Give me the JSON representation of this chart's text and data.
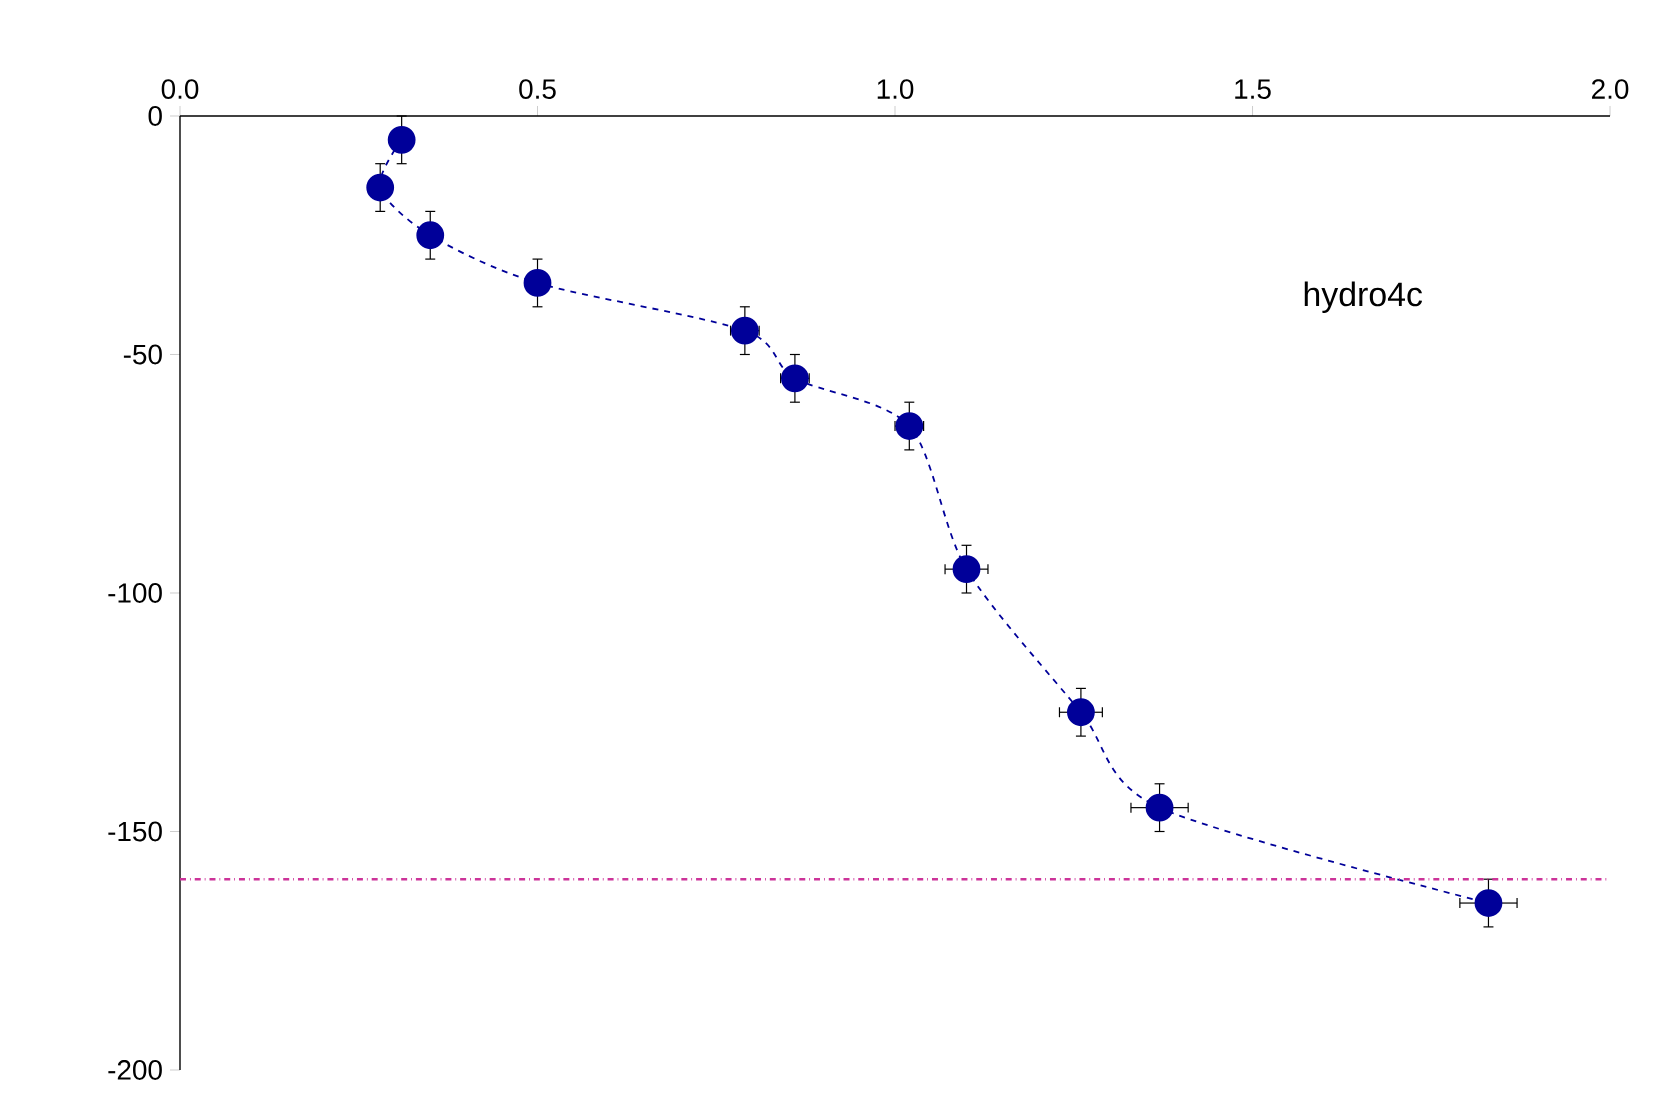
{
  "chart_data": {
    "type": "line",
    "x": [
      0.31,
      0.28,
      0.35,
      0.5,
      0.79,
      0.86,
      1.02,
      1.1,
      1.26,
      1.37,
      1.83
    ],
    "series": [
      {
        "color": "#000099",
        "line_style": "dashed",
        "marker": "circle",
        "values": [
          -5,
          -15,
          -25,
          -35,
          -45,
          -55,
          -65,
          -95,
          -125,
          -145,
          -165
        ],
        "errors": [
          5,
          5,
          5,
          5,
          5,
          5,
          5,
          5,
          5,
          5,
          5
        ],
        "xerrors": [
          null,
          null,
          null,
          null,
          0.02,
          0.02,
          0.02,
          0.03,
          0.03,
          0.04,
          0.04
        ]
      }
    ],
    "xlim": [
      0,
      2
    ],
    "ylim": [
      -200,
      0
    ],
    "xticks": [
      {
        "value": 0,
        "label": "0.0"
      },
      {
        "value": 0.5,
        "label": "0.5"
      },
      {
        "value": 1,
        "label": "1.0"
      },
      {
        "value": 1.5,
        "label": "1.5"
      },
      {
        "value": 2,
        "label": "2.0"
      }
    ],
    "yticks": [
      -200,
      -150,
      -100,
      -50,
      0
    ],
    "ref_lines": [
      {
        "axis": "y",
        "value": -160,
        "color": "#cc3399",
        "line_style": "dashdot"
      }
    ],
    "annotations": [
      "hydro4c"
    ],
    "grid": false
  }
}
